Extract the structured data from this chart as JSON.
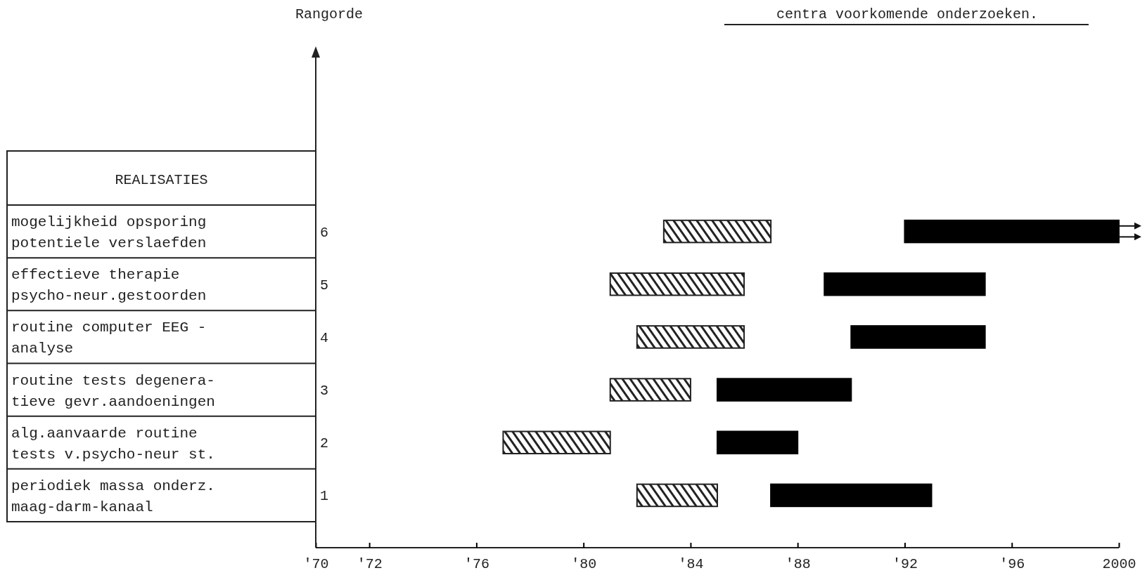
{
  "chart_data": {
    "type": "bar",
    "orientation": "horizontal",
    "title": "centra voorkomende onderzoeken.",
    "categories": [
      "mogelijkheid opsporing\npotentiele verslaefden",
      "effectieve therapie\npsycho-neur.gestoorden",
      "routine computer EEG -\nanalyse",
      "routine tests degenera-\ntieve gevr.aandoeningen",
      "alg.aanvaarde routine\ntests v.psycho-neur st.",
      "periodiek massa onderz.\nmaag-darm-kanaal"
    ],
    "series": [
      {
        "color": "#222222",
        "base": [
          1983,
          1981,
          1982,
          1981,
          1977,
          1982
        ],
        "values": [
          4,
          5,
          4,
          3,
          4,
          3
        ]
      },
      {
        "color": "#000000",
        "base": [
          1992,
          1989,
          1990,
          1985,
          1985,
          1987
        ],
        "values": [
          8,
          6,
          5,
          5,
          3,
          6
        ]
      }
    ],
    "xlim": [
      1970,
      2000
    ],
    "xticks": [
      {
        "value": 1970,
        "label": "'70"
      },
      {
        "value": 1972,
        "label": "'72"
      },
      {
        "value": 1976,
        "label": "'76"
      },
      {
        "value": 1980,
        "label": "'80"
      },
      {
        "value": 1984,
        "label": "'84"
      },
      {
        "value": 1988,
        "label": "'88"
      },
      {
        "value": 1992,
        "label": "'92"
      },
      {
        "value": 1996,
        "label": "'96"
      },
      2000
    ],
    "annotations": [
      "Rangorde",
      "REALISATIES",
      "6",
      "5",
      "4",
      "3",
      "2",
      "1"
    ]
  }
}
